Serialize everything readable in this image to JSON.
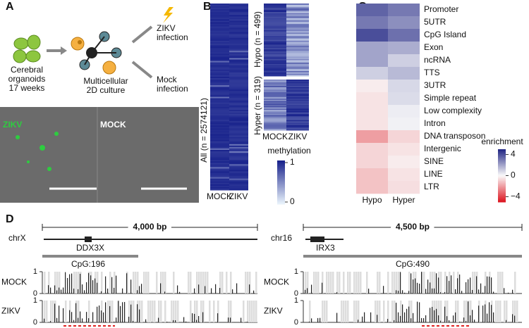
{
  "panels": {
    "a": "A",
    "b": "B",
    "c": "C",
    "d": "D"
  },
  "panel_a": {
    "organoids": [
      "Cerebral",
      "organoids",
      "17 weeks"
    ],
    "culture": [
      "Multicellular",
      "2D culture"
    ],
    "zikv_infection": [
      "ZIKV",
      "infection"
    ],
    "mock_infection": [
      "Mock",
      "infection"
    ],
    "image_labels": [
      "ZIKV",
      "MOCK"
    ]
  },
  "panel_b": {
    "all_label": "All (n = 2574121)",
    "hypo_label": "Hypo (n = 499)",
    "hyper_label": "Hyper (n = 319)",
    "columns": [
      "MOCK",
      "ZIKV"
    ],
    "colorbar_title": "methylation",
    "clim": [
      0,
      1
    ],
    "ticks": [
      1,
      0
    ]
  },
  "panel_c": {
    "type": "heatmap",
    "rows": [
      "Promoter",
      "5UTR",
      "CpG Island",
      "Exon",
      "ncRNA",
      "TTS",
      "3UTR",
      "Simple repeat",
      "Low complexity",
      "Intron",
      "DNA transposon",
      "Intergenic",
      "SINE",
      "LINE",
      "LTR"
    ],
    "columns": [
      "Hypo",
      "Hyper"
    ],
    "values": [
      [
        3.5,
        3
      ],
      [
        3,
        2.5
      ],
      [
        4,
        3.2
      ],
      [
        2,
        1.8
      ],
      [
        2,
        1
      ],
      [
        1,
        1.5
      ],
      [
        -0.3,
        0.8
      ],
      [
        -0.5,
        0.7
      ],
      [
        -0.5,
        0.3
      ],
      [
        -0.5,
        0.2
      ],
      [
        -2,
        -0.8
      ],
      [
        -0.8,
        -0.5
      ],
      [
        -0.8,
        -0.3
      ],
      [
        -1.2,
        -0.5
      ],
      [
        -1.2,
        -0.6
      ]
    ],
    "colorbar_title": "enrichment",
    "clim": [
      -5,
      5
    ],
    "ticks": [
      4,
      0,
      {
        "value": -4,
        "label": "−4"
      }
    ]
  },
  "panel_d": {
    "loci": [
      {
        "scale": "4,000 bp",
        "chrom": "chrX",
        "gene": "DDX3X",
        "cpg": "CpG:196",
        "tracks": [
          "MOCK",
          "ZIKV"
        ],
        "ylim": [
          0,
          1
        ],
        "yticks": [
          1,
          0
        ]
      },
      {
        "scale": "4,500 bp",
        "chrom": "chr16",
        "gene": "IRX3",
        "cpg": "CpG:490",
        "tracks": [
          "MOCK",
          "ZIKV"
        ],
        "ylim": [
          0,
          1
        ],
        "yticks": [
          1,
          0
        ]
      }
    ]
  }
}
